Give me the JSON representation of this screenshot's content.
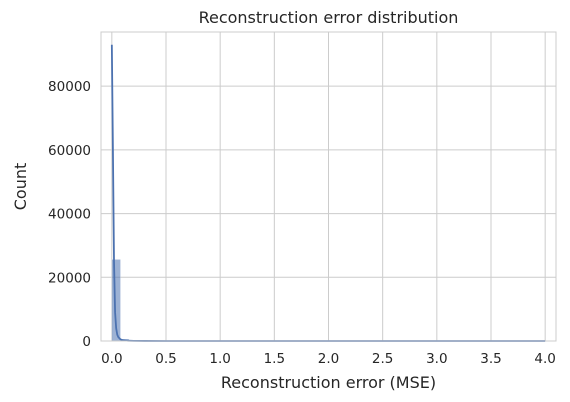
{
  "chart_data": {
    "type": "bar",
    "title": "Reconstruction error distribution",
    "xlabel": "Reconstruction error (MSE)",
    "ylabel": "Count",
    "xlim": [
      -0.1,
      4.1
    ],
    "ylim": [
      0,
      97000
    ],
    "xticks": [
      0.0,
      0.5,
      1.0,
      1.5,
      2.0,
      2.5,
      3.0,
      3.5,
      4.0
    ],
    "xtick_labels": [
      "0.0",
      "0.5",
      "1.0",
      "1.5",
      "2.0",
      "2.5",
      "3.0",
      "3.5",
      "4.0"
    ],
    "yticks": [
      0,
      20000,
      40000,
      60000,
      80000
    ],
    "ytick_labels": [
      "0",
      "20000",
      "40000",
      "60000",
      "80000"
    ],
    "grid": true,
    "bins": {
      "start": 0.0,
      "width": 0.08,
      "counts": [
        25600,
        600,
        150,
        60,
        30,
        20,
        15,
        10,
        8,
        6,
        5,
        4,
        3,
        3,
        2,
        2,
        2,
        1,
        1,
        1,
        1,
        1,
        1,
        1,
        1,
        1,
        1,
        1,
        1,
        1,
        1,
        1,
        1,
        1,
        1,
        1,
        1,
        1,
        1,
        1,
        1,
        1,
        1,
        1,
        1,
        1,
        1,
        1,
        1,
        1
      ]
    },
    "kde": {
      "x": [
        0.0,
        0.01,
        0.02,
        0.03,
        0.04,
        0.05,
        0.06,
        0.08,
        0.1,
        0.15,
        0.2,
        0.3,
        0.5,
        1.0,
        2.0,
        3.0,
        4.0
      ],
      "y": [
        93000,
        60000,
        25000,
        9000,
        4000,
        2000,
        1200,
        500,
        250,
        100,
        50,
        20,
        5,
        2,
        1,
        1,
        0
      ]
    },
    "colors": {
      "bar_fill": "#4c72b0",
      "kde_line": "#4c72b0",
      "grid": "#cccccc"
    }
  }
}
